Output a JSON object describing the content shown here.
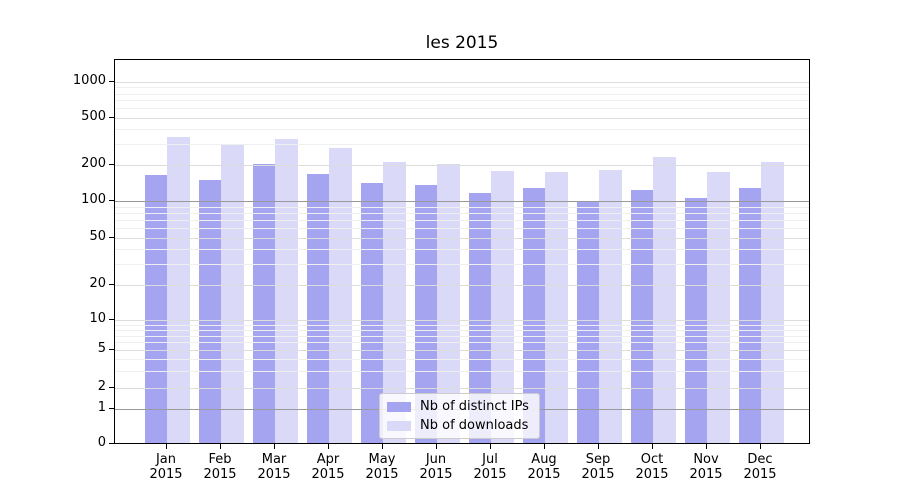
{
  "chart_data": {
    "type": "bar",
    "title": "les 2015",
    "categories": [
      "Jan 2015",
      "Feb 2015",
      "Mar 2015",
      "Apr 2015",
      "May 2015",
      "Jun 2015",
      "Jul 2015",
      "Aug 2015",
      "Sep 2015",
      "Oct 2015",
      "Nov 2015",
      "Dec 2015"
    ],
    "series": [
      {
        "name": "Nb of distinct IPs",
        "color": "#a4a4f0",
        "values": [
          165,
          150,
          205,
          170,
          143,
          137,
          118,
          128,
          100,
          125,
          106,
          128
        ]
      },
      {
        "name": "Nb of downloads",
        "color": "#dadaf8",
        "values": [
          345,
          295,
          335,
          280,
          212,
          205,
          180,
          175,
          184,
          237,
          176,
          213
        ]
      }
    ],
    "yscale": "symlog",
    "y_ticks": [
      1000,
      500,
      200,
      100,
      50,
      20,
      10,
      5,
      2,
      1,
      0
    ],
    "ylim": [
      0,
      1600
    ],
    "grid": true,
    "legend_position": "lower-center",
    "colors": {
      "grid_minor": "#efefef",
      "grid_major": "#dcdcdc",
      "grid_strong": "#9a9a9a",
      "axis": "#000000"
    }
  }
}
